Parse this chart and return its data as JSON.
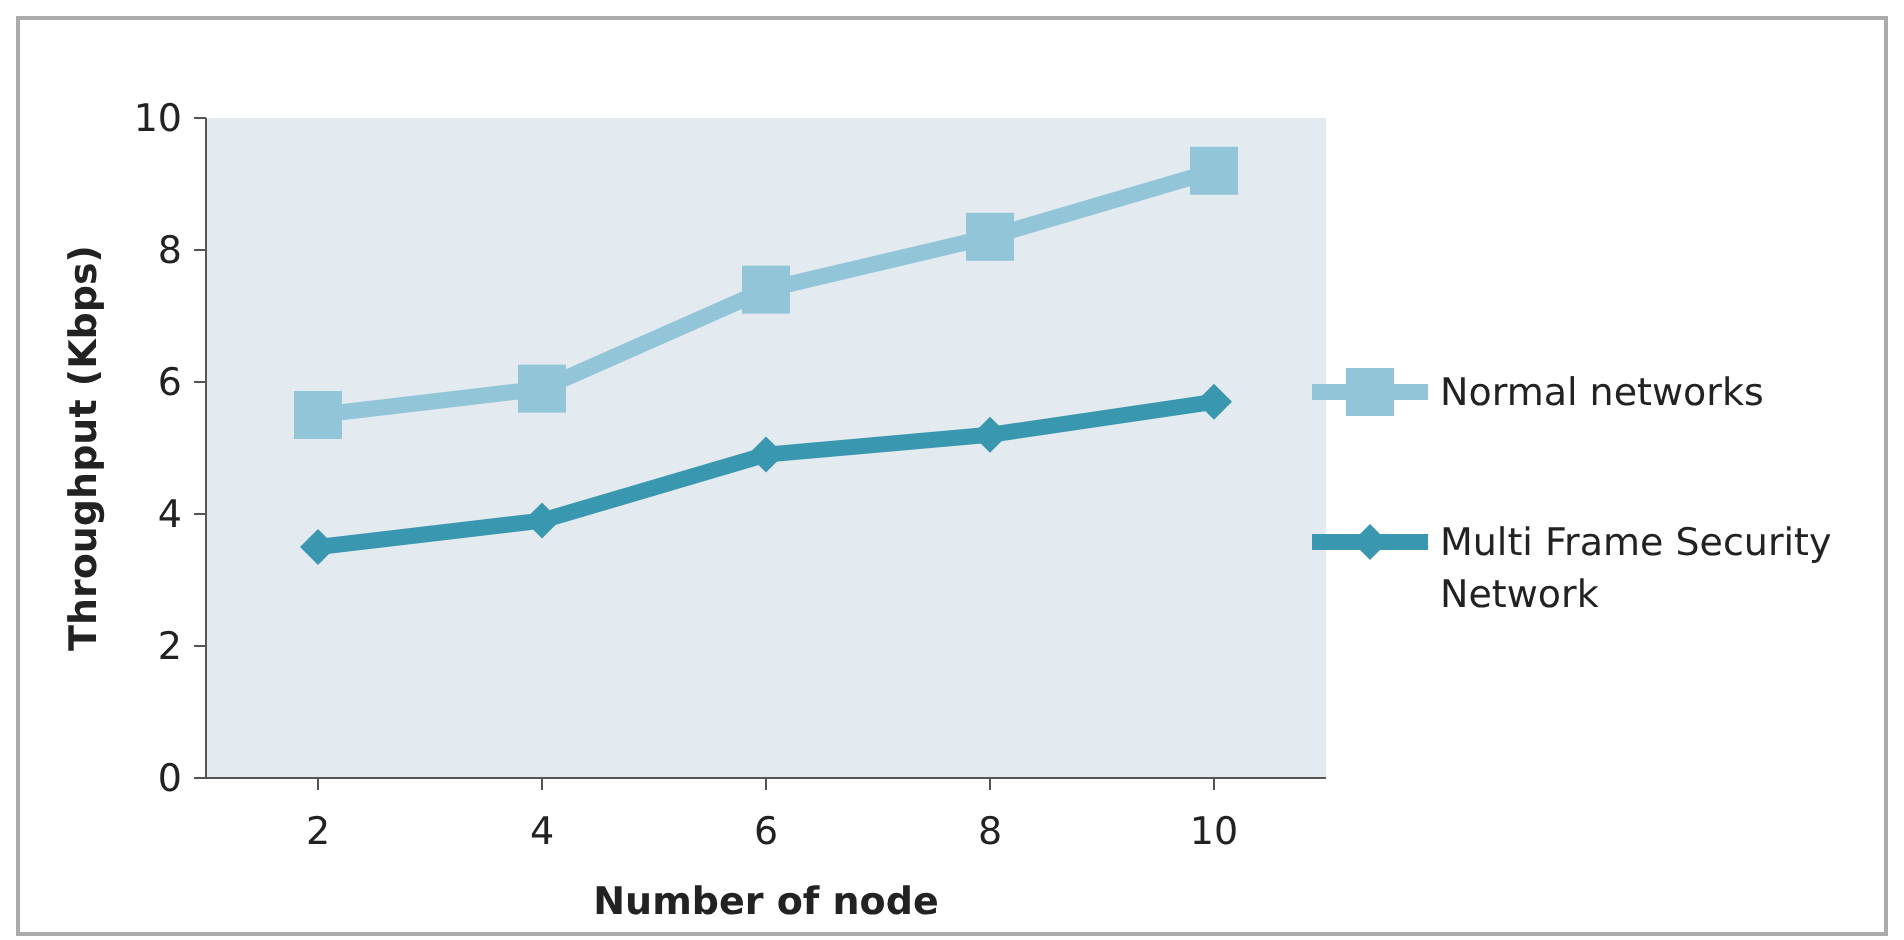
{
  "chart_data": {
    "type": "line",
    "xlabel": "Number of node",
    "ylabel": "Throughput (Kbps)",
    "categories": [
      "2",
      "4",
      "6",
      "8",
      "10"
    ],
    "ylim": [
      0,
      10
    ],
    "yticks": [
      0,
      2,
      4,
      6,
      8,
      10
    ],
    "grid": false,
    "legend": "right",
    "series": [
      {
        "name": "Normal networks",
        "color": "#92c5d8",
        "marker": "square",
        "values": [
          5.5,
          5.9,
          7.4,
          8.2,
          9.2
        ]
      },
      {
        "name": "Multi Frame Security Network",
        "color": "#3a97b0",
        "marker": "diamond",
        "values": [
          3.5,
          3.9,
          4.9,
          5.2,
          5.7
        ]
      }
    ]
  }
}
